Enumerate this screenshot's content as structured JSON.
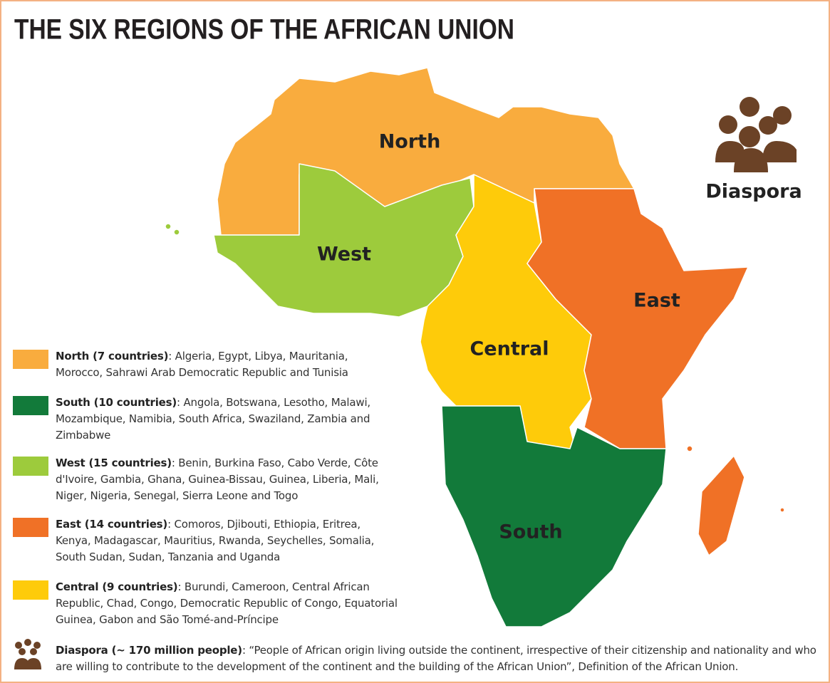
{
  "title": "THE SIX REGIONS OF THE AFRICAN UNION",
  "map_labels": [
    "North",
    "West",
    "East",
    "Central",
    "South",
    "Diaspora"
  ],
  "legend": [
    {
      "heading": "North (7 countries)",
      "text": ": Algeria, Egypt, Libya, Mauritania, Morocco, Sahrawi Arab Democratic Republic and Tunisia",
      "color": "#f9ac3e"
    },
    {
      "heading": "South (10 countries)",
      "text": ": Angola, Botswana, Lesotho, Malawi, Mozambique, Namibia, South Africa, Swaziland, Zambia and Zimbabwe",
      "color": "#127a3a"
    },
    {
      "heading": "West (15 countries)",
      "text": ": Benin, Burkina Faso, Cabo Verde, Côte d'Ivoire, Gambia, Ghana, Guinea-Bissau, Guinea, Liberia, Mali, Niger, Nigeria, Senegal, Sierra Leone and Togo",
      "color": "#9dcb3c"
    },
    {
      "heading": "East (14 countries)",
      "text": ": Comoros, Djibouti, Ethiopia, Eritrea, Kenya, Madagascar, Mauritius, Rwanda, Seychelles, Somalia, South Sudan, Sudan, Tanzania and Uganda",
      "color": "#f07126"
    },
    {
      "heading": "Central (9 countries)",
      "text": ": Burundi, Cameroon, Central African Republic, Chad, Congo, Democratic Republic of Congo, Equatorial Guinea, Gabon and São Tomé-and-Príncipe",
      "color": "#fecb0a"
    }
  ],
  "diaspora": {
    "heading": "Diaspora (~ 170 million people)",
    "text": ":  “People of African origin living outside the continent, irrespective of their citizenship and nationality and who are willing to contribute to the development of the continent and the building of the African Union”, Definition of the African Union."
  }
}
